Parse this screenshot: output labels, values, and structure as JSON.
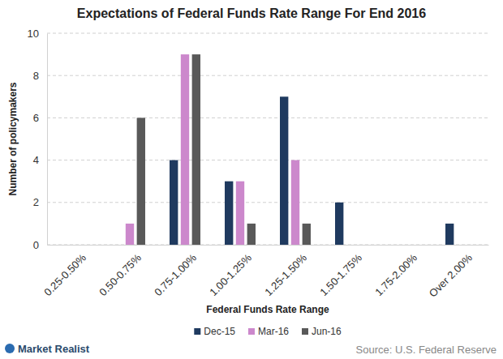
{
  "chart_data": {
    "type": "bar",
    "title": "Expectations of Federal Funds Rate Range For End 2016",
    "x_label": "Federal Funds Rate Range",
    "y_label": "Number of policymakers",
    "categories": [
      "0.25-0.50%",
      "0.50-0.75%",
      "0.75-1.00%",
      "1.00-1.25%",
      "1.25-1.50%",
      "1.50-1.75%",
      "1.75-2.00%",
      "Over 2.00%"
    ],
    "series": [
      {
        "name": "Dec-15",
        "color": "#1f3a5f",
        "values": [
          0,
          0,
          4,
          3,
          7,
          2,
          0,
          1
        ]
      },
      {
        "name": "Mar-16",
        "color": "#cc88cc",
        "values": [
          0,
          1,
          9,
          3,
          4,
          0,
          0,
          0
        ]
      },
      {
        "name": "Jun-16",
        "color": "#595959",
        "values": [
          0,
          6,
          9,
          1,
          1,
          0,
          0,
          0
        ]
      }
    ],
    "ylim": [
      0,
      10
    ],
    "yticks": [
      0,
      2,
      4,
      6,
      8,
      10
    ],
    "grid": true,
    "legend": "bottom",
    "annotations": [
      "Market Realist",
      "Source: U.S. Federal Reserve"
    ]
  }
}
